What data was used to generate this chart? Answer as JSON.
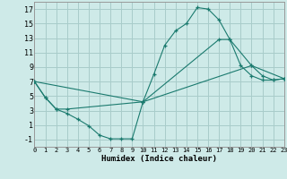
{
  "xlabel": "Humidex (Indice chaleur)",
  "bg_color": "#ceeae8",
  "grid_color": "#a8ccca",
  "line_color": "#1a7a6e",
  "xlim": [
    0,
    23
  ],
  "ylim": [
    -2,
    18
  ],
  "xticks": [
    0,
    1,
    2,
    3,
    4,
    5,
    6,
    7,
    8,
    9,
    10,
    11,
    12,
    13,
    14,
    15,
    16,
    17,
    18,
    19,
    20,
    21,
    22,
    23
  ],
  "yticks": [
    -1,
    1,
    3,
    5,
    7,
    9,
    11,
    13,
    15,
    17
  ],
  "series1": [
    [
      0,
      7.0
    ],
    [
      1,
      4.8
    ],
    [
      2,
      3.2
    ],
    [
      3,
      2.6
    ],
    [
      4,
      1.8
    ],
    [
      5,
      0.9
    ],
    [
      6,
      -0.4
    ],
    [
      7,
      -0.9
    ],
    [
      8,
      -0.9
    ],
    [
      9,
      -0.9
    ],
    [
      10,
      4.2
    ],
    [
      11,
      8.0
    ],
    [
      12,
      12.0
    ],
    [
      13,
      14.0
    ],
    [
      14,
      15.0
    ],
    [
      15,
      17.2
    ],
    [
      16,
      17.0
    ],
    [
      17,
      15.5
    ],
    [
      18,
      12.8
    ],
    [
      19,
      9.2
    ],
    [
      20,
      7.8
    ],
    [
      21,
      7.2
    ],
    [
      22,
      7.2
    ],
    [
      23,
      7.4
    ]
  ],
  "series2": [
    [
      0,
      7.0
    ],
    [
      1,
      4.8
    ],
    [
      2,
      3.2
    ],
    [
      3,
      3.2
    ],
    [
      10,
      4.2
    ],
    [
      17,
      12.8
    ],
    [
      18,
      12.8
    ],
    [
      20,
      9.2
    ],
    [
      21,
      7.8
    ],
    [
      22,
      7.2
    ],
    [
      23,
      7.4
    ]
  ],
  "series3": [
    [
      0,
      7.0
    ],
    [
      10,
      4.2
    ],
    [
      20,
      9.2
    ],
    [
      23,
      7.4
    ]
  ]
}
